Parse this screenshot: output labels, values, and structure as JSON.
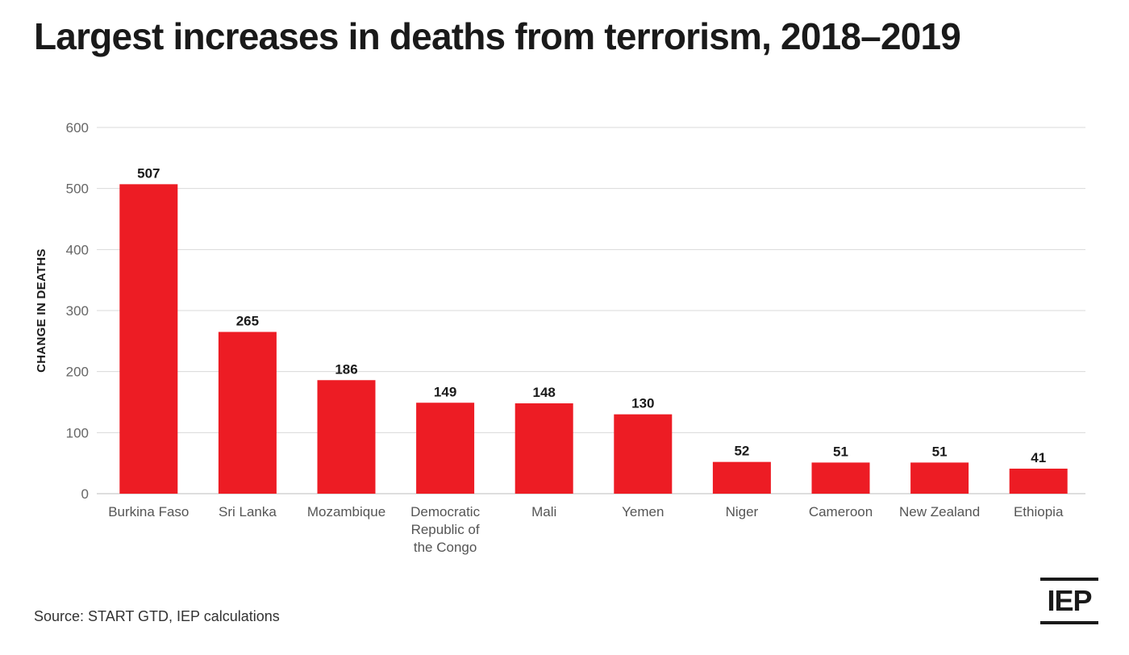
{
  "title": "Largest increases in deaths from terrorism, 2018–2019",
  "source": "Source: START GTD, IEP calculations",
  "logo": "IEP",
  "colors": {
    "bar": "#ed1c24",
    "grid": "#d9d9d9",
    "text": "#1a1a1a"
  },
  "chart_data": {
    "type": "bar",
    "title": "Largest increases in deaths from terrorism, 2018–2019",
    "xlabel": "",
    "ylabel": "CHANGE IN DEATHS",
    "ylim": [
      0,
      600
    ],
    "yticks": [
      0,
      100,
      200,
      300,
      400,
      500,
      600
    ],
    "grid": true,
    "categories": [
      [
        "Burkina Faso"
      ],
      [
        "Sri Lanka"
      ],
      [
        "Mozambique"
      ],
      [
        "Democratic",
        "Republic of",
        "the Congo"
      ],
      [
        "Mali"
      ],
      [
        "Yemen"
      ],
      [
        "Niger"
      ],
      [
        "Cameroon"
      ],
      [
        "New Zealand"
      ],
      [
        "Ethiopia"
      ]
    ],
    "values": [
      507,
      265,
      186,
      149,
      148,
      130,
      52,
      51,
      51,
      41
    ]
  }
}
